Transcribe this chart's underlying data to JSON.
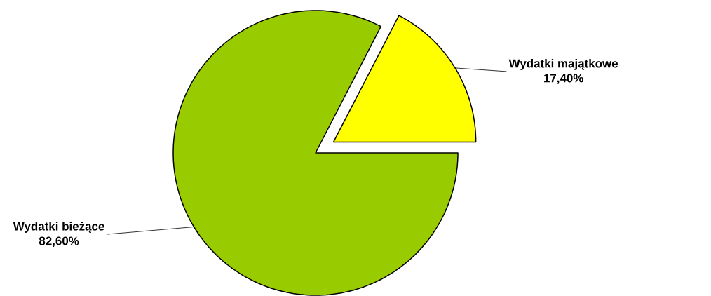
{
  "chart_data": {
    "type": "pie",
    "categories": [
      "Wydatki majątkowe",
      "Wydatki bieżące"
    ],
    "values": [
      17.4,
      82.6
    ],
    "colors": [
      "#ffff00",
      "#99cc00"
    ],
    "value_labels": [
      "17,40%",
      "82,60%"
    ]
  }
}
